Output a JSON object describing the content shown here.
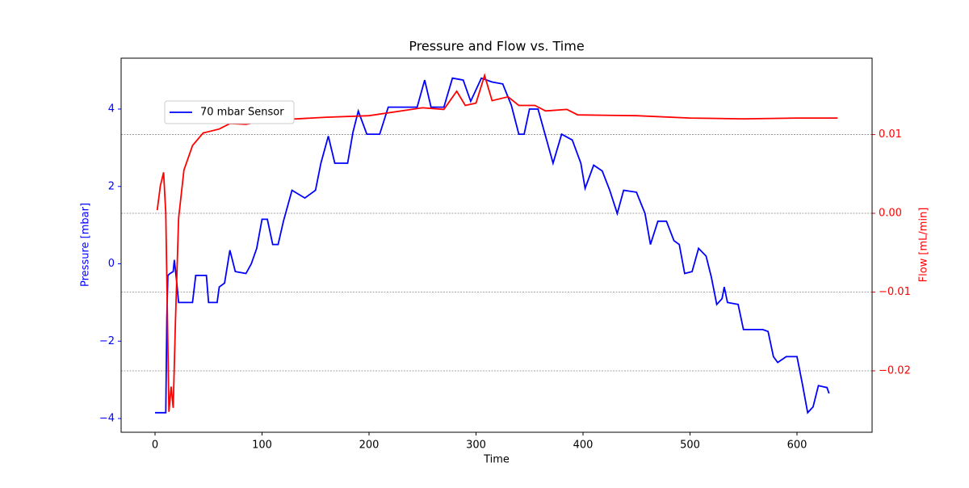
{
  "chart_data": {
    "type": "line",
    "title": "Pressure and Flow vs. Time",
    "xlabel": "Time",
    "ylabel": "Pressure [mbar]",
    "y2label": "Flow [mL/min]",
    "xlim": [
      -31.7,
      670.2
    ],
    "ylim": [
      -4.355,
      5.316
    ],
    "y2lim": [
      -0.0278,
      0.0197
    ],
    "xticks": [
      0,
      100,
      200,
      300,
      400,
      500,
      600
    ],
    "yticks": [
      {
        "value": -4,
        "label": "−4"
      },
      {
        "value": -2,
        "label": "−2"
      },
      0,
      2,
      4
    ],
    "y2ticks": [
      {
        "value": -0.02,
        "label": "−0.02"
      },
      {
        "value": -0.01,
        "label": "−0.01"
      },
      {
        "value": 0,
        "label": "0.00"
      },
      {
        "value": 0.01,
        "label": "0.01"
      }
    ],
    "grid": "y2",
    "legend": "upper left",
    "series": [
      {
        "name": "70 mbar Sensor",
        "color": "#0000ff",
        "axis": "y",
        "x": [
          0,
          10,
          11,
          12,
          14,
          17,
          18,
          20,
          22,
          35,
          38,
          48,
          50,
          58,
          60,
          65,
          70,
          75,
          85,
          90,
          95,
          100,
          105,
          110,
          115,
          120,
          128,
          140,
          150,
          155,
          162,
          168,
          180,
          185,
          190,
          198,
          210,
          218,
          230,
          245,
          252,
          258,
          270,
          278,
          288,
          295,
          305,
          315,
          325,
          333,
          340,
          345,
          350,
          358,
          365,
          372,
          380,
          390,
          398,
          402,
          410,
          418,
          425,
          432,
          438,
          450,
          458,
          463,
          470,
          478,
          485,
          490,
          495,
          502,
          508,
          515,
          520,
          525,
          530,
          532,
          535,
          545,
          550,
          568,
          573,
          578,
          582,
          590,
          600,
          605,
          610,
          615,
          620,
          628,
          630
        ],
        "values": [
          -3.85,
          -3.85,
          -1.4,
          -0.3,
          -0.25,
          -0.2,
          0.1,
          -0.4,
          -1.0,
          -1.0,
          -0.3,
          -0.3,
          -1.0,
          -1.0,
          -0.6,
          -0.5,
          0.35,
          -0.2,
          -0.25,
          0.0,
          0.4,
          1.15,
          1.15,
          0.5,
          0.5,
          1.1,
          1.9,
          1.7,
          1.9,
          2.6,
          3.3,
          2.6,
          2.6,
          3.4,
          3.95,
          3.35,
          3.35,
          4.05,
          4.05,
          4.05,
          4.75,
          4.05,
          4.05,
          4.8,
          4.75,
          4.2,
          4.8,
          4.7,
          4.65,
          4.1,
          3.35,
          3.35,
          4.0,
          4.0,
          3.3,
          2.6,
          3.35,
          3.2,
          2.6,
          1.95,
          2.55,
          2.4,
          1.9,
          1.3,
          1.9,
          1.85,
          1.3,
          0.5,
          1.1,
          1.1,
          0.6,
          0.5,
          -0.25,
          -0.2,
          0.4,
          0.2,
          -0.35,
          -1.05,
          -0.9,
          -0.6,
          -1.0,
          -1.05,
          -1.7,
          -1.7,
          -1.75,
          -2.4,
          -2.55,
          -2.4,
          -2.4,
          -3.1,
          -3.85,
          -3.7,
          -3.15,
          -3.2,
          -3.35
        ]
      },
      {
        "color": "#ff0000",
        "axis": "y2",
        "x": [
          2,
          5,
          8,
          10,
          13,
          15,
          17,
          19,
          22,
          27,
          35,
          45,
          60,
          70,
          85,
          100,
          120,
          160,
          200,
          250,
          270,
          282,
          290,
          300,
          308,
          315,
          330,
          340,
          355,
          365,
          385,
          395,
          450,
          500,
          550,
          600,
          638
        ],
        "values": [
          0.0004,
          0.0035,
          0.0052,
          0.0,
          -0.0252,
          -0.022,
          -0.0247,
          -0.014,
          -0.0006,
          0.0055,
          0.0086,
          0.0102,
          0.0107,
          0.0114,
          0.0113,
          0.0117,
          0.0119,
          0.0122,
          0.0124,
          0.0134,
          0.0132,
          0.0155,
          0.0137,
          0.014,
          0.0175,
          0.0143,
          0.0148,
          0.0137,
          0.0137,
          0.013,
          0.0132,
          0.0125,
          0.0124,
          0.0121,
          0.012,
          0.0121,
          0.0121
        ]
      }
    ]
  }
}
